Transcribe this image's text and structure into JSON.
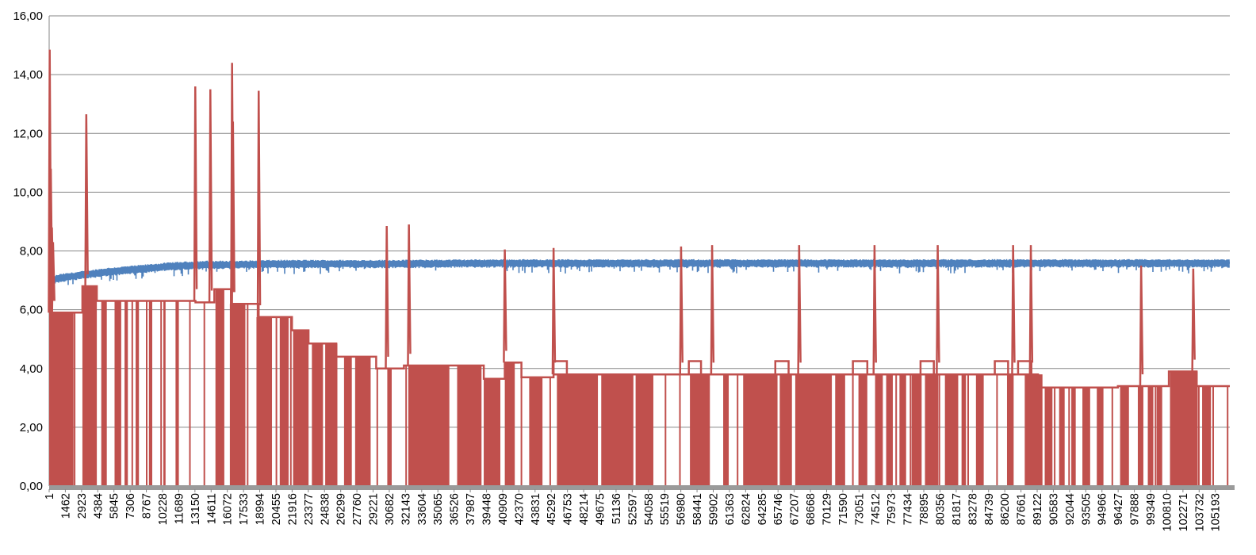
{
  "chart_data": {
    "type": "line",
    "title": "",
    "xlabel": "",
    "ylabel": "",
    "ylim": [
      0,
      16
    ],
    "y_ticks": [
      "0,00",
      "2,00",
      "4,00",
      "6,00",
      "8,00",
      "10,00",
      "12,00",
      "14,00",
      "16,00"
    ],
    "x_range": [
      1,
      106500
    ],
    "x_ticks": [
      "1",
      "1462",
      "2923",
      "4384",
      "5845",
      "7306",
      "8767",
      "10228",
      "11689",
      "13150",
      "14611",
      "16072",
      "17533",
      "18994",
      "20455",
      "21916",
      "23377",
      "24838",
      "26299",
      "27760",
      "29221",
      "30682",
      "32143",
      "33604",
      "35065",
      "36526",
      "37987",
      "39448",
      "40909",
      "42370",
      "43831",
      "45292",
      "46753",
      "48214",
      "49675",
      "51136",
      "52597",
      "54058",
      "55519",
      "56980",
      "58441",
      "59902",
      "61363",
      "62824",
      "64285",
      "65746",
      "67207",
      "68668",
      "70129",
      "71590",
      "73051",
      "74512",
      "75973",
      "77434",
      "78895",
      "80356",
      "81817",
      "83278",
      "84739",
      "86200",
      "87661",
      "89122",
      "90583",
      "92044",
      "93505",
      "94966",
      "96427",
      "97888",
      "99349",
      "100810",
      "102271",
      "103732",
      "105193"
    ],
    "grid": true,
    "legend": "none",
    "series": [
      {
        "color": "#4f81bd",
        "band_low": 7.4,
        "band_high": 7.65,
        "x": [
          1,
          1000,
          3000,
          5000,
          8000,
          11000,
          14000,
          17000,
          20000,
          25000,
          30000,
          40000,
          50000,
          60000,
          70000,
          80000,
          90000,
          100000,
          106500
        ],
        "y": [
          7.0,
          7.1,
          7.2,
          7.3,
          7.4,
          7.5,
          7.55,
          7.55,
          7.58,
          7.58,
          7.58,
          7.6,
          7.6,
          7.6,
          7.6,
          7.6,
          7.6,
          7.6,
          7.6
        ]
      },
      {
        "color": "#c0504d",
        "steps": [
          {
            "x0": 1,
            "x1": 3000,
            "y": 5.9
          },
          {
            "x0": 3000,
            "x1": 4300,
            "y": 6.8
          },
          {
            "x0": 4300,
            "x1": 13200,
            "y": 6.3
          },
          {
            "x0": 13200,
            "x1": 14900,
            "y": 6.25
          },
          {
            "x0": 14900,
            "x1": 16400,
            "y": 6.7
          },
          {
            "x0": 16400,
            "x1": 18900,
            "y": 6.2
          },
          {
            "x0": 18900,
            "x1": 19600,
            "y": 5.75
          },
          {
            "x0": 19600,
            "x1": 21900,
            "y": 5.75
          },
          {
            "x0": 21900,
            "x1": 23400,
            "y": 5.3
          },
          {
            "x0": 23400,
            "x1": 25900,
            "y": 4.85
          },
          {
            "x0": 25900,
            "x1": 29500,
            "y": 4.4
          },
          {
            "x0": 29500,
            "x1": 32000,
            "y": 4.0
          },
          {
            "x0": 32000,
            "x1": 33000,
            "y": 4.1
          },
          {
            "x0": 33000,
            "x1": 39200,
            "y": 4.1
          },
          {
            "x0": 39200,
            "x1": 41100,
            "y": 3.65
          },
          {
            "x0": 41100,
            "x1": 42600,
            "y": 4.2
          },
          {
            "x0": 42600,
            "x1": 45500,
            "y": 3.7
          },
          {
            "x0": 45500,
            "x1": 86300,
            "y": 3.8
          },
          {
            "x0": 86300,
            "x1": 89200,
            "y": 3.8
          },
          {
            "x0": 89200,
            "x1": 96400,
            "y": 3.35
          },
          {
            "x0": 96400,
            "x1": 101000,
            "y": 3.4
          },
          {
            "x0": 101000,
            "x1": 103500,
            "y": 3.9
          },
          {
            "x0": 103500,
            "x1": 106500,
            "y": 3.4
          }
        ],
        "bumps": [
          {
            "x0": 41100,
            "x1": 42400,
            "y": 4.2
          },
          {
            "x0": 45500,
            "x1": 46700,
            "y": 4.25
          },
          {
            "x0": 57700,
            "x1": 58800,
            "y": 4.25
          },
          {
            "x0": 65500,
            "x1": 66700,
            "y": 4.25
          },
          {
            "x0": 72500,
            "x1": 73800,
            "y": 4.25
          },
          {
            "x0": 78600,
            "x1": 79800,
            "y": 4.25
          },
          {
            "x0": 85300,
            "x1": 86500,
            "y": 4.25
          },
          {
            "x0": 87400,
            "x1": 88600,
            "y": 4.25
          }
        ],
        "filled_regions": [
          [
            1,
            2200
          ],
          [
            3000,
            4300
          ],
          [
            4700,
            5200
          ],
          [
            5900,
            6500
          ],
          [
            6800,
            7100
          ],
          [
            7800,
            8100
          ],
          [
            9000,
            9300
          ],
          [
            10300,
            10500
          ],
          [
            11400,
            11700
          ],
          [
            15000,
            15800
          ],
          [
            16300,
            17700
          ],
          [
            18700,
            20100
          ],
          [
            20800,
            21600
          ],
          [
            22000,
            23400
          ],
          [
            23700,
            24700
          ],
          [
            24900,
            26000
          ],
          [
            26600,
            27300
          ],
          [
            27600,
            29000
          ],
          [
            30500,
            30900
          ],
          [
            32400,
            36100
          ],
          [
            36800,
            39000
          ],
          [
            39200,
            40700
          ],
          [
            41100,
            42000
          ],
          [
            43300,
            44500
          ],
          [
            45800,
            49500
          ],
          [
            49800,
            52700
          ],
          [
            52900,
            54500
          ],
          [
            57800,
            59600
          ],
          [
            60800,
            61300
          ],
          [
            62600,
            65700
          ],
          [
            65900,
            67000
          ],
          [
            67300,
            70600
          ],
          [
            70900,
            71800
          ],
          [
            73000,
            73800
          ],
          [
            74500,
            75200
          ],
          [
            75500,
            76100
          ],
          [
            76700,
            77300
          ],
          [
            77800,
            78700
          ],
          [
            79000,
            80200
          ],
          [
            80800,
            82000
          ],
          [
            82300,
            82700
          ],
          [
            83600,
            84300
          ],
          [
            86400,
            87000
          ],
          [
            88000,
            89600
          ],
          [
            89800,
            90500
          ],
          [
            91100,
            91600
          ],
          [
            92200,
            92600
          ],
          [
            93200,
            93900
          ],
          [
            94500,
            95100
          ],
          [
            96600,
            97400
          ],
          [
            98200,
            98700
          ],
          [
            99100,
            99600
          ],
          [
            99900,
            100400
          ],
          [
            101100,
            103600
          ],
          [
            104000,
            104800
          ]
        ],
        "spikes": [
          {
            "x": 50,
            "y": 14.85
          },
          {
            "x": 150,
            "y": 10.8
          },
          {
            "x": 250,
            "y": 8.8
          },
          {
            "x": 350,
            "y": 8.3
          },
          {
            "x": 3350,
            "y": 12.65
          },
          {
            "x": 13180,
            "y": 13.6
          },
          {
            "x": 14540,
            "y": 13.5
          },
          {
            "x": 16500,
            "y": 14.4
          },
          {
            "x": 16580,
            "y": 12.4
          },
          {
            "x": 18900,
            "y": 13.45
          },
          {
            "x": 30450,
            "y": 8.85
          },
          {
            "x": 32450,
            "y": 8.9
          },
          {
            "x": 41100,
            "y": 8.05
          },
          {
            "x": 45500,
            "y": 8.1
          },
          {
            "x": 57000,
            "y": 8.15
          },
          {
            "x": 59800,
            "y": 8.2
          },
          {
            "x": 67650,
            "y": 8.2
          },
          {
            "x": 74450,
            "y": 8.2
          },
          {
            "x": 80150,
            "y": 8.2
          },
          {
            "x": 86950,
            "y": 8.2
          },
          {
            "x": 88550,
            "y": 8.2
          },
          {
            "x": 98500,
            "y": 7.5
          },
          {
            "x": 103200,
            "y": 7.4
          }
        ]
      }
    ]
  }
}
